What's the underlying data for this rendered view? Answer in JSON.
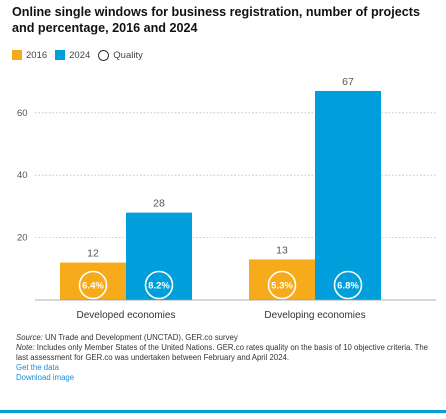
{
  "title": "Online single windows for business registration, number of projects and percentage, 2016 and 2024",
  "legend": {
    "items": [
      {
        "label": "2016",
        "color": "#f7ab1b"
      },
      {
        "label": "2024",
        "color": "#009edb"
      }
    ],
    "quality_label": "Quality",
    "quality_icon": "circle-outline-icon"
  },
  "colors": {
    "y2016": "#f7ab1b",
    "y2024": "#009edb",
    "grid": "#bdbdbd",
    "axis_text": "#555555"
  },
  "chart_data": {
    "type": "bar",
    "title": "Online single windows for business registration, number of projects and percentage, 2016 and 2024",
    "categories": [
      "Developed economies",
      "Developing economies"
    ],
    "series": [
      {
        "name": "2016",
        "values": [
          12,
          13
        ],
        "quality": [
          "6.4%",
          "5.3%"
        ]
      },
      {
        "name": "2024",
        "values": [
          28,
          67
        ],
        "quality": [
          "8.2%",
          "6.8%"
        ]
      }
    ],
    "yticks": [
      20,
      40,
      60
    ],
    "ylim": [
      0,
      70
    ],
    "xlabel": "",
    "ylabel": "",
    "grid": "dotted horizontal",
    "legend_position": "top-left"
  },
  "notes": {
    "source_label": "Source:",
    "source_text": " UN Trade and Development (UNCTAD), GER.co survey",
    "note_label": "Note:",
    "note_text": " Includes only Member States of the United Nations. GER.co rates quality on the basis of 10 objective criteria. The last assessment for GER.co was undertaken between February and April 2024.",
    "links": [
      "Get the data",
      "Download image"
    ]
  }
}
